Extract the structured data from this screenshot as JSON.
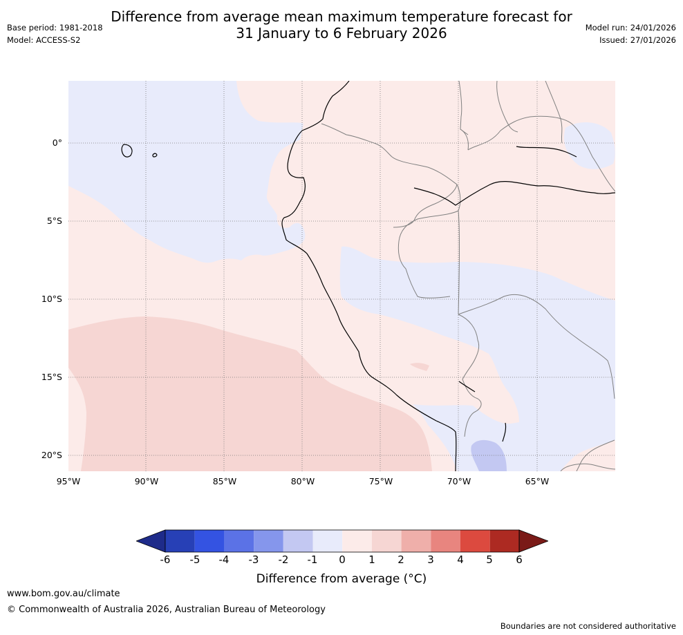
{
  "header": {
    "title_line1": "Difference from average mean maximum temperature forecast for",
    "title_line2": "31 January to 6 February 2026",
    "base_period": "Base period: 1981-2018",
    "model": "Model: ACCESS-S2",
    "model_run": "Model run: 24/01/2026",
    "issued": "Issued: 27/01/2026"
  },
  "map": {
    "y_axis": [
      "0°",
      "5°S",
      "10°S",
      "15°S",
      "20°S"
    ],
    "x_axis": [
      "95°W",
      "90°W",
      "85°W",
      "80°W",
      "75°W",
      "70°W",
      "65°W"
    ],
    "anomaly_colors": {
      "neg2_to_neg1": "#c3c8f2",
      "neg1_to_0": "#e8ebfb",
      "zero_to_1": "#fcebe9",
      "one_to_2": "#f6d6d3"
    }
  },
  "colorbar": {
    "ticks": [
      "-6",
      "-5",
      "-4",
      "-3",
      "-2",
      "-1",
      "0",
      "1",
      "2",
      "3",
      "4",
      "5",
      "6"
    ],
    "colors": [
      "#1e2b8a",
      "#2740b6",
      "#3453e2",
      "#5b72e6",
      "#8596ec",
      "#c3c8f2",
      "#e8ebfb",
      "#fcebe9",
      "#f6d6d3",
      "#efafaa",
      "#e8857f",
      "#dc4a3f",
      "#ad2a22",
      "#7a1a17"
    ],
    "title": "Difference from average (°C)"
  },
  "footer": {
    "url": "www.bom.gov.au/climate",
    "copyright": "© Commonwealth of Australia 2026, Australian Bureau of Meteorology",
    "disclaimer": "Boundaries are not considered authoritative"
  }
}
